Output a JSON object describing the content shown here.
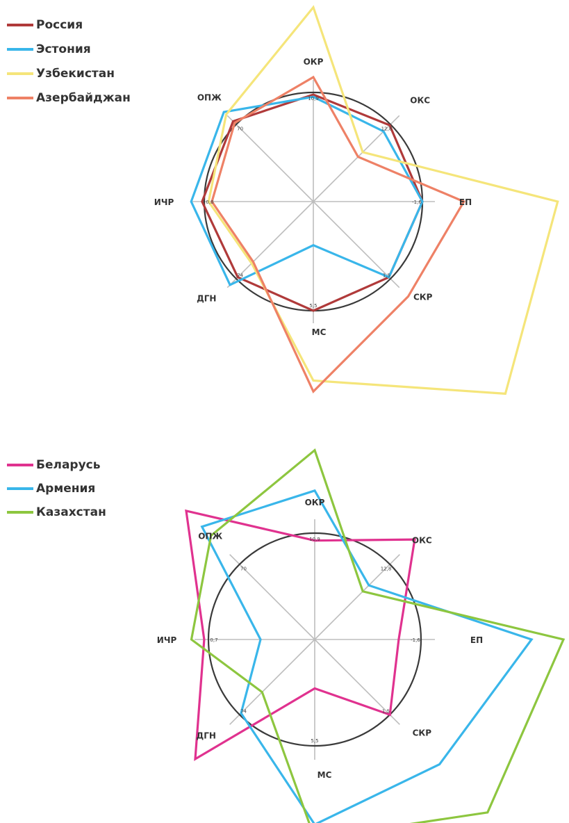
{
  "colors": {
    "Россия": "#b03a3a",
    "Эстония": "#39b6ea",
    "Узбекистан": "#f5e57a",
    "Азербайджан": "#ee8166",
    "Беларусь": "#e0328f",
    "Армения": "#39b6ea",
    "Казахстан": "#8dc63f",
    "grid": "#bdbdbd",
    "circle": "#3a3a3a"
  },
  "chart_data": [
    {
      "type": "radar",
      "axes": [
        "ОКР",
        "ОКС",
        "ЕП",
        "СКР",
        "МС",
        "ДГН",
        "ИЧР",
        "ОПЖ"
      ],
      "tick_labels": [
        "10,9",
        "12,8",
        "-1,6",
        "1,5",
        "5,5",
        "74",
        "0,8",
        "70"
      ],
      "series": [
        {
          "name": "Россия",
          "values": [
            0.98,
            0.99,
            1.0,
            0.98,
            1.0,
            0.98,
            1.02,
            1.04
          ]
        },
        {
          "name": "Эстония",
          "values": [
            0.96,
            0.91,
            1.0,
            0.98,
            0.4,
            1.08,
            1.12,
            1.16
          ]
        },
        {
          "name": "Узбекистан",
          "values": [
            1.78,
            0.64,
            2.24,
            2.49,
            1.64,
            0.8,
            0.96,
            1.13
          ]
        },
        {
          "name": "Азербайджан",
          "values": [
            1.14,
            0.58,
            1.38,
            1.23,
            1.74,
            0.78,
            0.93,
            1.02
          ]
        }
      ]
    },
    {
      "type": "radar",
      "axes": [
        "ОКР",
        "ОКС",
        "ЕП",
        "СКР",
        "МС",
        "ДГН",
        "ИЧР",
        "ОПЖ"
      ],
      "tick_labels": [
        "10,9",
        "12,8",
        "-1,6",
        "1,5",
        "5,5",
        "74",
        "0,7",
        "70"
      ],
      "series": [
        {
          "name": "Беларусь",
          "values": [
            0.93,
            1.33,
            0.79,
            1.0,
            0.46,
            1.59,
            1.04,
            1.71
          ]
        },
        {
          "name": "Армения",
          "values": [
            1.4,
            0.72,
            2.04,
            1.66,
            1.74,
            0.98,
            0.51,
            1.5
          ]
        },
        {
          "name": "Казахстан",
          "values": [
            1.78,
            0.64,
            2.34,
            2.3,
            1.87,
            0.7,
            1.16,
            1.38
          ]
        }
      ]
    }
  ]
}
